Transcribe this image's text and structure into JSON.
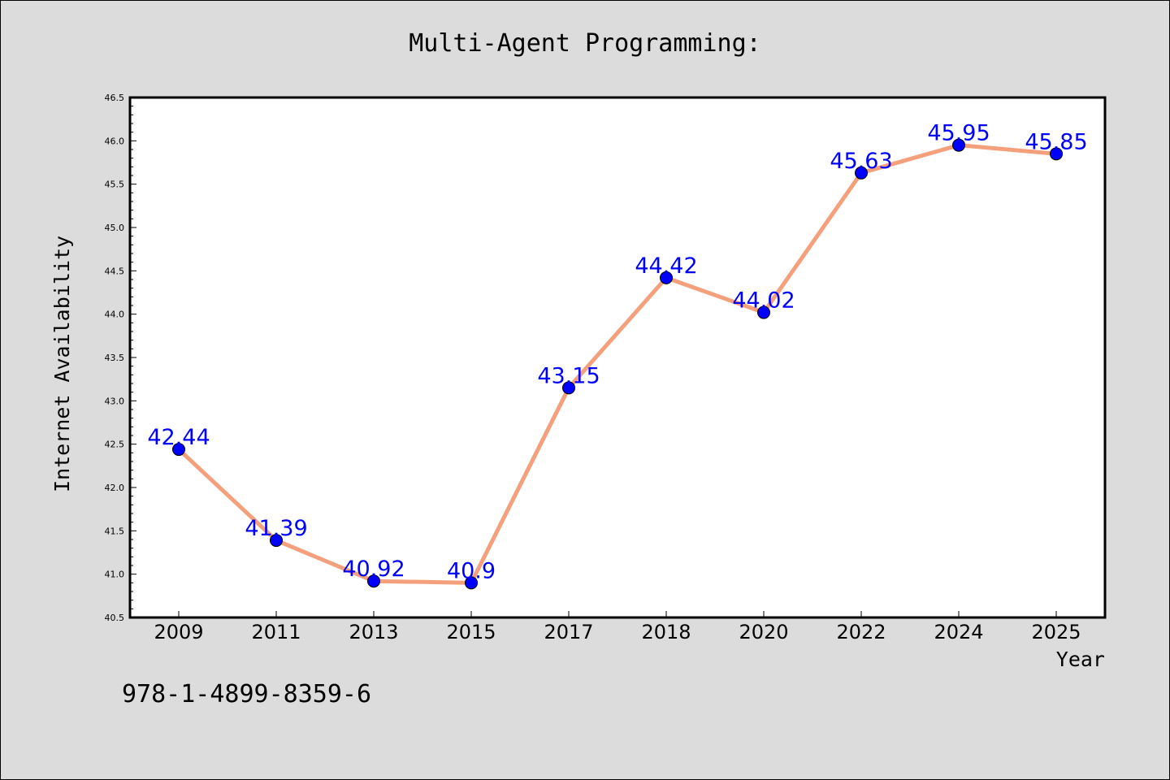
{
  "chart_data": {
    "type": "line",
    "title": "Multi-Agent Programming:",
    "xlabel": "Year",
    "ylabel": "Internet Availability",
    "categories": [
      "2009",
      "2011",
      "2013",
      "2015",
      "2017",
      "2018",
      "2020",
      "2022",
      "2024",
      "2025"
    ],
    "series": [
      {
        "values": [
          42.44,
          41.39,
          40.92,
          40.9,
          43.15,
          44.42,
          44.02,
          45.63,
          45.95,
          45.85
        ],
        "data_labels": [
          "42.44",
          "41.39",
          "40.92",
          "40.9",
          "43.15",
          "44.42",
          "44.02",
          "45.63",
          "45.95",
          "45.85"
        ]
      }
    ],
    "ylim": [
      40.5,
      46.5
    ],
    "yticks": [
      "40.5",
      "41.0",
      "41.5",
      "42.0",
      "42.5",
      "43.0",
      "43.5",
      "44.0",
      "44.5",
      "45.0",
      "45.5",
      "46.0",
      "46.5"
    ],
    "grid": false,
    "legend": "none",
    "colors": {
      "line": "#f4a07c",
      "marker": "#0000ff",
      "label": "#0000ff",
      "background": "#dcdcdc",
      "plot_bg": "#ffffff"
    }
  },
  "footnote": "978-1-4899-8359-6"
}
